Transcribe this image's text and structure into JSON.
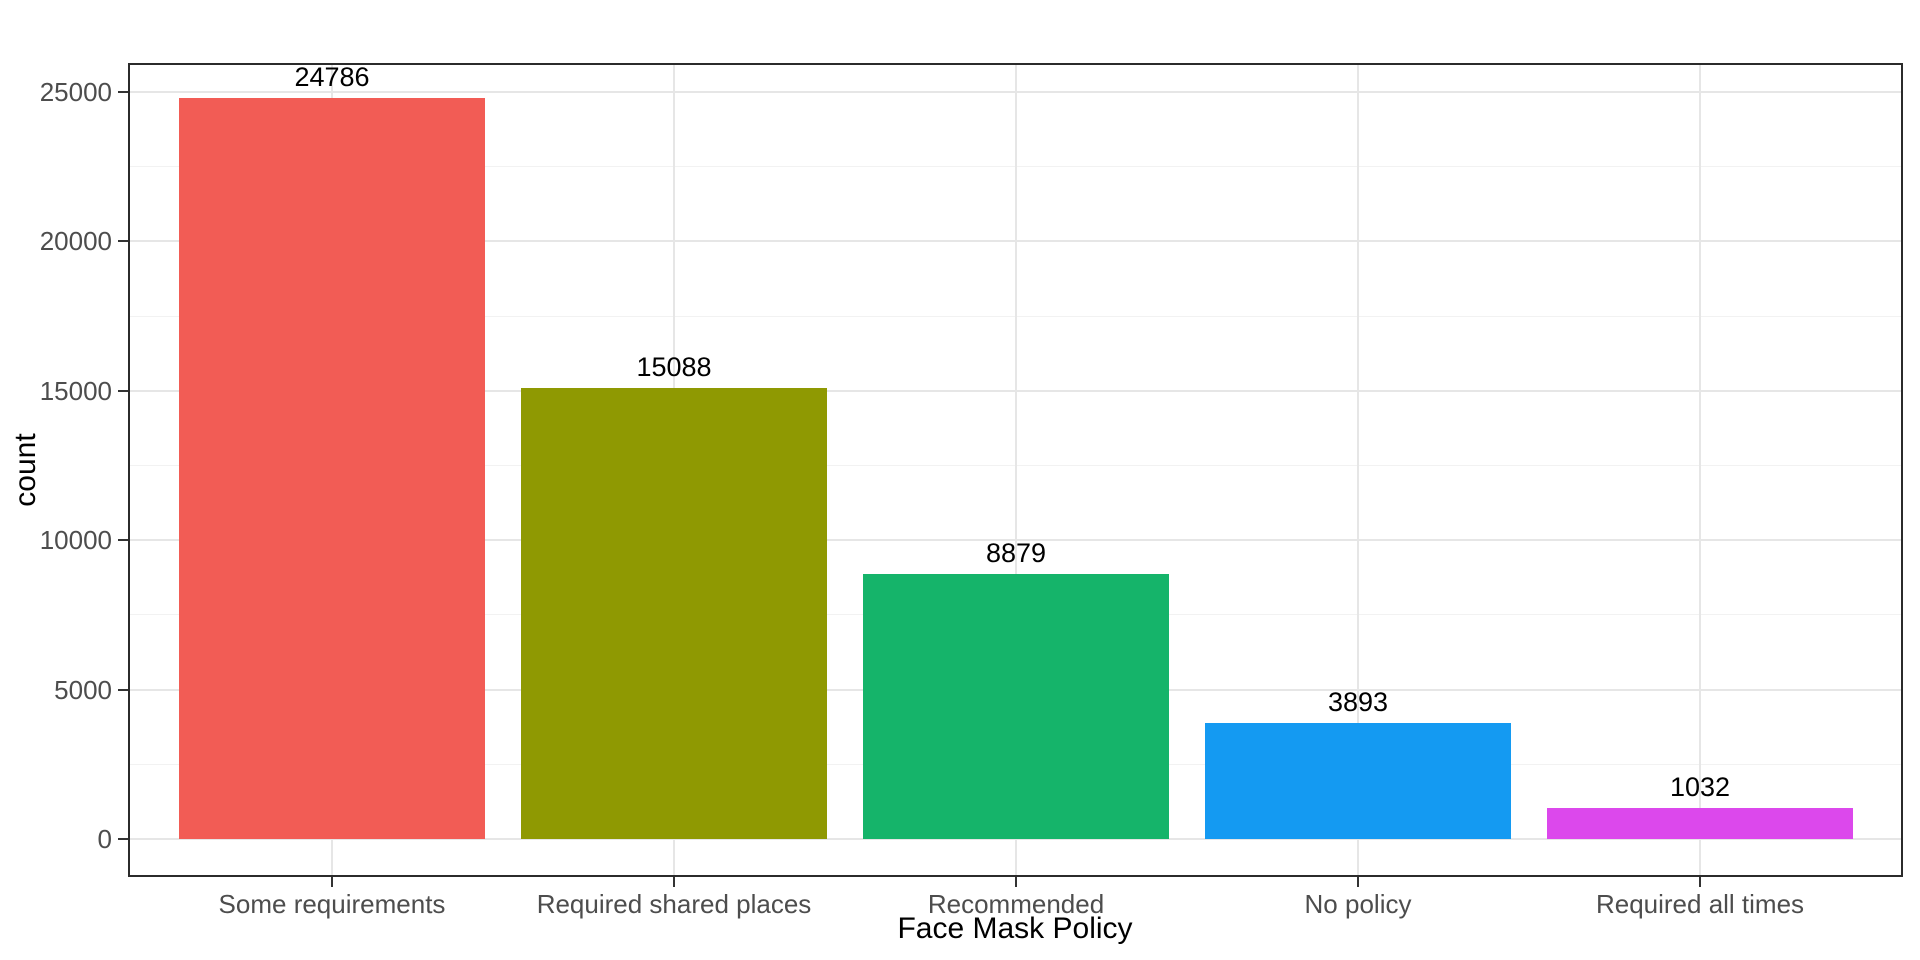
{
  "chart_data": {
    "type": "bar",
    "title": "",
    "xlabel": "Face Mask Policy",
    "ylabel": "count",
    "categories": [
      "Some requirements",
      "Required shared places",
      "Recommended",
      "No policy",
      "Required all times"
    ],
    "values": [
      24786,
      15088,
      8879,
      3893,
      1032
    ],
    "bar_value_labels": [
      "24786",
      "15088",
      "8879",
      "3893",
      "1032"
    ],
    "bar_colors": [
      "#F25C55",
      "#8F9902",
      "#15B46A",
      "#149AF2",
      "#DC48EC"
    ],
    "ylim": [
      0,
      25000
    ],
    "yticks": [
      0,
      5000,
      10000,
      15000,
      20000,
      25000
    ],
    "ytick_labels": [
      "0",
      "5000",
      "10000",
      "15000",
      "20000",
      "25000"
    ],
    "y_minor_ticks": [
      2500,
      7500,
      12500,
      17500,
      22500
    ],
    "grid": "major horizontal lines, minor horizontal lines, vertical major lines at category centers",
    "legend_position": "none",
    "panel_border": true
  },
  "style": {
    "figure_background": "#FFFFFF",
    "panel_background": "#FFFFFF",
    "panel_border_color": "#2B2B2B",
    "grid_major_color": "#E6E6E6",
    "grid_minor_color": "#F2F2F2",
    "tick_color": "#333333",
    "tick_label_color": "#4D4D4D",
    "axis_title_color": "#000000",
    "value_label_color": "#000000"
  }
}
